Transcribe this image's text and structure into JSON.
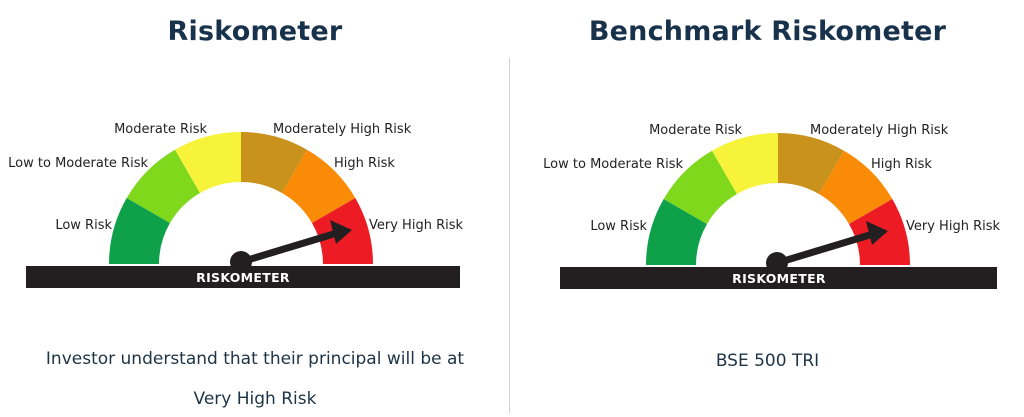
{
  "left": {
    "title": "Riskometer",
    "meter": {
      "labels": {
        "low": "Low Risk",
        "low_moderate": "Low to Moderate Risk",
        "moderate": "Moderate Risk",
        "moderately_high": "Moderately High Risk",
        "high": "High Risk",
        "very_high": "Very High Risk"
      },
      "bar_label": "RISKOMETER",
      "current_level": "Very High Risk"
    },
    "description_line1": "Investor understand that their principal will be at",
    "description_line2": "Very High Risk"
  },
  "right": {
    "title": "Benchmark Riskometer",
    "meter": {
      "labels": {
        "low": "Low Risk",
        "low_moderate": "Low to Moderate Risk",
        "moderate": "Moderate Risk",
        "moderately_high": "Moderately High Risk",
        "high": "High Risk",
        "very_high": "Very High Risk"
      },
      "bar_label": "RISKOMETER",
      "current_level": "Very High Risk"
    },
    "benchmark_name": "BSE 500 TRI"
  },
  "colors": {
    "low": "#0fa14a",
    "low_moderate": "#7fd81c",
    "moderate": "#f7f33a",
    "moderately_high": "#c8921c",
    "high": "#f98b06",
    "very_high": "#ed1c24",
    "bar": "#231f20",
    "title": "#17324a"
  }
}
